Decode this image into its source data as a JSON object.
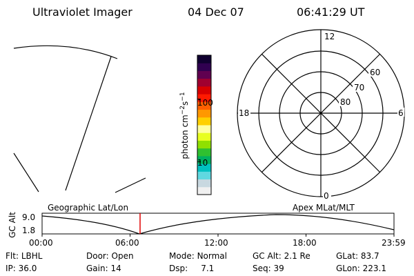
{
  "header": {
    "instrument": "Ultraviolet Imager",
    "date": "04 Dec 07",
    "time": "06:41:29 UT"
  },
  "colorbar": {
    "label": "photon cm⁻²s⁻¹",
    "ticks": [
      {
        "value": 100,
        "label": "100"
      },
      {
        "value": 10,
        "label": "10"
      }
    ],
    "scale": "log",
    "range": [
      3,
      500
    ],
    "colors": [
      "#f0f0f0",
      "#c8d8e0",
      "#60d8e0",
      "#00c0c0",
      "#00b060",
      "#30c030",
      "#90e000",
      "#e8ff20",
      "#ffffa0",
      "#ffd000",
      "#ff9800",
      "#ff6000",
      "#ff1a00",
      "#d80000",
      "#a00030",
      "#600050",
      "#300050",
      "#100030"
    ]
  },
  "polar_plot": {
    "mlt_labels": {
      "top": "12",
      "bottom": "0",
      "left": "18",
      "right": "6"
    },
    "lat_labels": [
      "60",
      "70",
      "80"
    ]
  },
  "timeline": {
    "left_label": "Geographic Lat/Lon",
    "right_label": "Apex MLat/MLT",
    "y_axis_title": "GC Alt",
    "y_ticks": [
      "9.0",
      "1.8"
    ],
    "x_ticks": [
      "00:00",
      "06:00",
      "12:00",
      "18:00",
      "23:59"
    ],
    "current_time": "06:41"
  },
  "footer": {
    "row1": [
      {
        "key": "Flt:",
        "value": "LBHL"
      },
      {
        "key": "Door:",
        "value": "Open"
      },
      {
        "key": "Mode:",
        "value": "Normal"
      },
      {
        "key": "GC Alt:",
        "value": "2.1 Re"
      },
      {
        "key": "GLat:",
        "value": "83.7"
      }
    ],
    "row2": [
      {
        "key": "IP:",
        "value": "36.0"
      },
      {
        "key": "Gain:",
        "value": "14"
      },
      {
        "key": "Dsp:",
        "value": "7.1"
      },
      {
        "key": "Seq:",
        "value": "39"
      },
      {
        "key": "GLon:",
        "value": "223.1"
      }
    ]
  }
}
